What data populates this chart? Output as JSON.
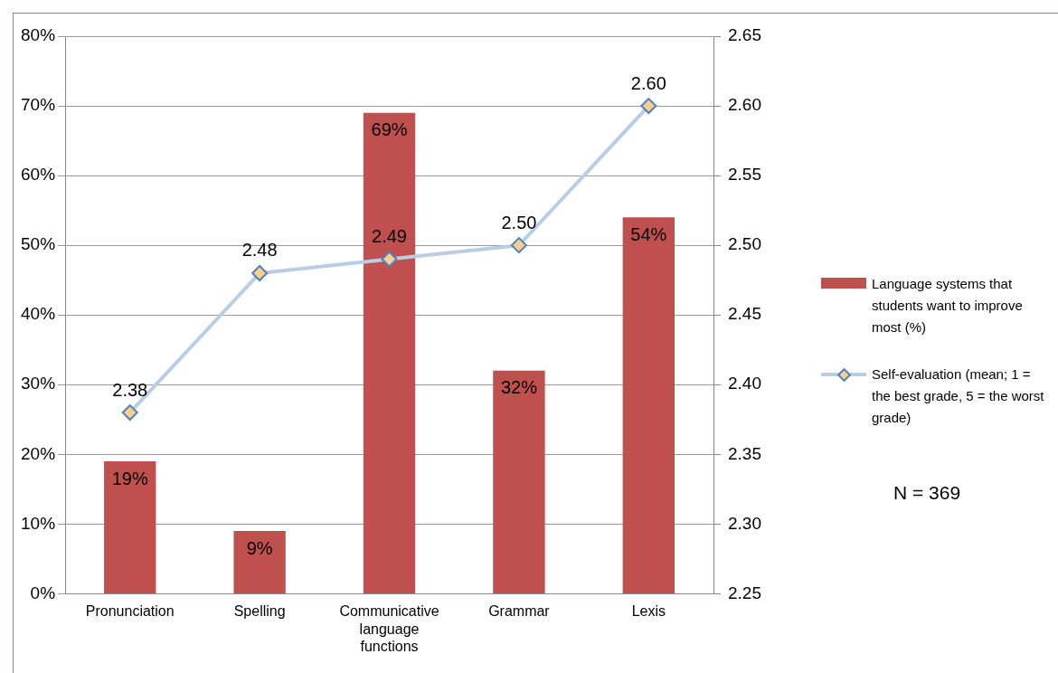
{
  "chart_data": {
    "type": "bar",
    "categories": [
      "Pronunciation",
      "Spelling",
      "Communicative language functions",
      "Grammar",
      "Lexis"
    ],
    "series": [
      {
        "name": "Language systems that students want to improve most (%)",
        "color": "#c0504d",
        "values": [
          19,
          9,
          69,
          32,
          54
        ],
        "value_labels": [
          "19%",
          "9%",
          "69%",
          "32%",
          "54%"
        ]
      },
      {
        "name": "Self-evaluation (mean; 1 = the best grade, 5 = the worst grade)",
        "type": "line",
        "axis": "y2",
        "color": "#b9cde5",
        "marker": "diamond",
        "values": [
          2.38,
          2.48,
          2.49,
          2.5,
          2.6
        ],
        "value_labels": [
          "2.38",
          "2.48",
          "2.49",
          "2.50",
          "2.60"
        ]
      }
    ],
    "ylim": [
      0,
      80
    ],
    "yticks": [
      {
        "value": 0,
        "label": "0%"
      },
      {
        "value": 10,
        "label": "10%"
      },
      {
        "value": 20,
        "label": "20%"
      },
      {
        "value": 30,
        "label": "30%"
      },
      {
        "value": 40,
        "label": "40%"
      },
      {
        "value": 50,
        "label": "50%"
      },
      {
        "value": 60,
        "label": "60%"
      },
      {
        "value": 70,
        "label": "70%"
      },
      {
        "value": 80,
        "label": "80%"
      }
    ],
    "y2lim": [
      2.25,
      2.65
    ],
    "y2ticks": [
      2.25,
      {
        "value": 2.3,
        "label": "2.30"
      },
      2.35,
      {
        "value": 2.4,
        "label": "2.40"
      },
      2.45,
      {
        "value": 2.5,
        "label": "2.50"
      },
      2.55,
      {
        "value": 2.6,
        "label": "2.60"
      },
      2.65
    ],
    "grid": "y",
    "legend": "right",
    "annotations": [
      "N = 369"
    ]
  }
}
